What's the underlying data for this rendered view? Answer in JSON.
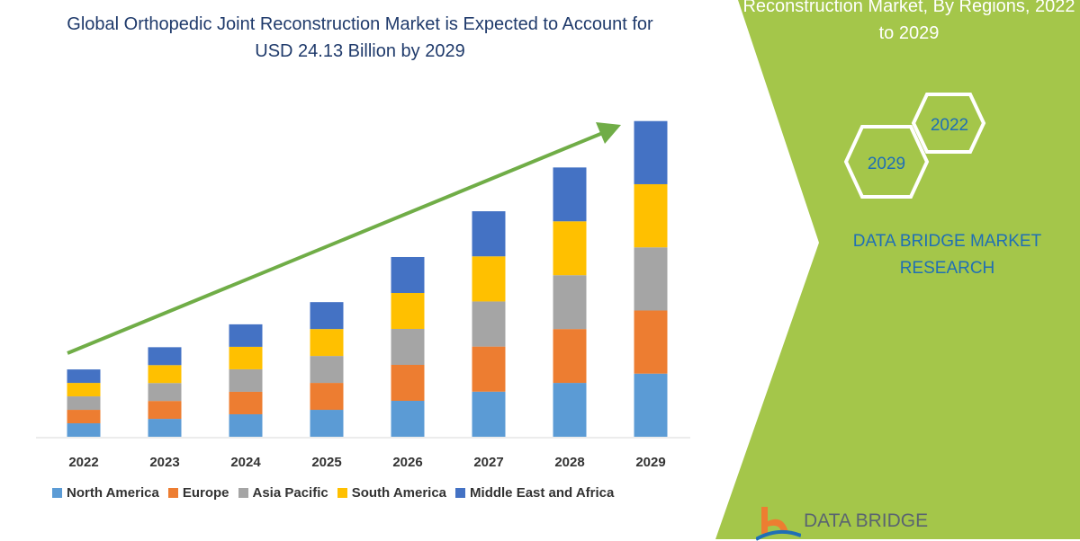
{
  "title": "Global Orthopedic Joint Reconstruction Market is Expected to Account for USD 24.13 Billion by 2029",
  "right_panel": {
    "title": "Reconstruction Market, By Regions, 2022 to 2029",
    "hex_labels": [
      "2029",
      "2022"
    ],
    "brand": "DATA BRIDGE MARKET RESEARCH",
    "logo_text": "DATA BRIDGE",
    "panel_color": "#a4c64a"
  },
  "chart_data": {
    "type": "bar",
    "stacked": true,
    "title": "Global Orthopedic Joint Reconstruction Market is Expected to Account for USD 24.13 Billion by 2029",
    "categories": [
      "2022",
      "2023",
      "2024",
      "2025",
      "2026",
      "2027",
      "2028",
      "2029"
    ],
    "series": [
      {
        "name": "North America",
        "color": "#5b9bd5",
        "values": [
          1.03,
          1.37,
          1.72,
          2.06,
          2.75,
          3.45,
          4.12,
          4.83
        ]
      },
      {
        "name": "Europe",
        "color": "#ed7d31",
        "values": [
          1.03,
          1.37,
          1.72,
          2.06,
          2.75,
          3.45,
          4.12,
          4.83
        ]
      },
      {
        "name": "Asia Pacific",
        "color": "#a5a5a5",
        "values": [
          1.03,
          1.37,
          1.72,
          2.06,
          2.75,
          3.45,
          4.12,
          4.83
        ]
      },
      {
        "name": "South America",
        "color": "#ffc000",
        "values": [
          1.03,
          1.37,
          1.72,
          2.06,
          2.75,
          3.45,
          4.12,
          4.83
        ]
      },
      {
        "name": "Middle East and Africa",
        "color": "#4472c4",
        "values": [
          1.03,
          1.37,
          1.72,
          2.06,
          2.75,
          3.45,
          4.12,
          4.83
        ]
      }
    ],
    "ylim": [
      0,
      24.13
    ],
    "grid": false,
    "legend": "bottom",
    "trend_arrow_color": "#70ad47"
  }
}
